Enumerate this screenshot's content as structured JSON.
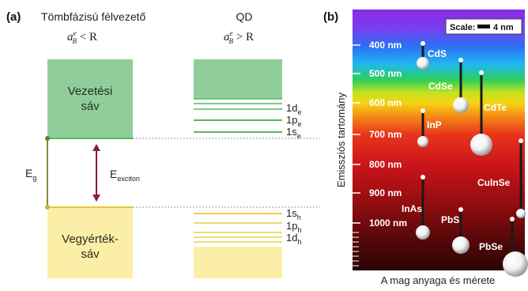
{
  "panel_a": {
    "label": "(a)",
    "bulk_title": "Tömbfázisú félvezető",
    "qd_title": "QD",
    "bulk_condition": {
      "base": "a",
      "sup": "e",
      "sub": "B",
      "rel": " < R"
    },
    "qd_condition": {
      "base": "a",
      "sup": "e",
      "sub": "B",
      "rel": " > R"
    },
    "conduction_band": [
      "Vezetési",
      "sáv"
    ],
    "valence_band": [
      "Vegyérték-",
      "sáv"
    ],
    "eg": {
      "base": "E",
      "sub": "g"
    },
    "eexciton": {
      "base": "E",
      "sub": "exciton"
    },
    "conduction_levels": [
      {
        "base": "1d",
        "sub": "e"
      },
      {
        "base": "1p",
        "sub": "e"
      },
      {
        "base": "1s",
        "sub": "e"
      }
    ],
    "valence_levels": [
      {
        "base": "1s",
        "sub": "h"
      },
      {
        "base": "1p",
        "sub": "h"
      },
      {
        "base": "1d",
        "sub": "h"
      }
    ],
    "colors": {
      "conduction": "#8fce9a",
      "conduction_line": "#4caf50",
      "valence": "#fbefa8",
      "valence_line": "#e8d24a",
      "arrow": "#8b1a4a"
    }
  },
  "panel_b": {
    "label": "(b)",
    "y_axis_label": "Emissziós tartomány",
    "x_axis_label": "A mag anyaga és mérete",
    "scale_label": "Scale:",
    "scale_value": "4 nm",
    "wavelength_ticks": [
      "400 nm",
      "500 nm",
      "600 nm",
      "700 nm",
      "800 nm",
      "900 nm",
      "1000 nm"
    ],
    "materials": [
      "CdS",
      "CdSe",
      "CdTe",
      "InP",
      "CuInSe",
      "InAs",
      "PbS",
      "PbSe"
    ]
  }
}
